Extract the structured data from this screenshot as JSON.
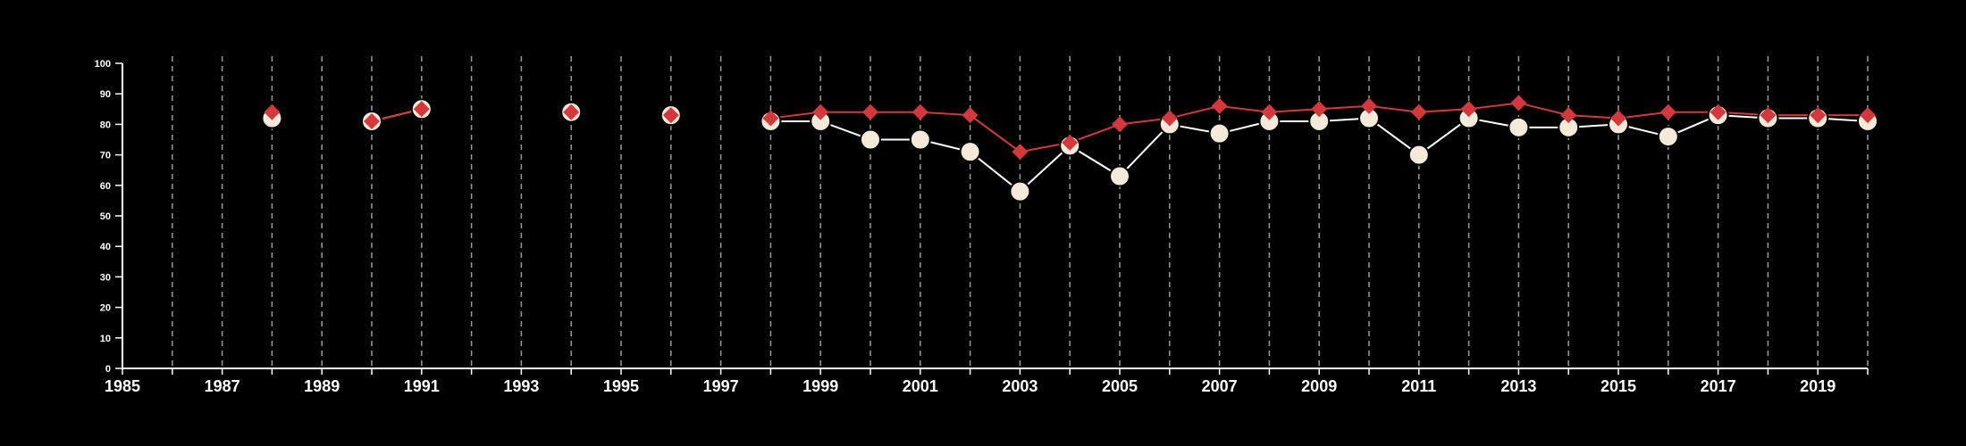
{
  "chart_data": {
    "type": "line",
    "title": "",
    "xlabel": "",
    "ylabel": "",
    "xlim": [
      1985,
      2020
    ],
    "ylim": [
      0,
      100
    ],
    "x_ticks": [
      1985,
      1987,
      1989,
      1991,
      1993,
      1995,
      1997,
      1999,
      2001,
      2003,
      2005,
      2007,
      2009,
      2011,
      2013,
      2015,
      2017,
      2019
    ],
    "y_ticks": [
      0,
      10,
      20,
      30,
      40,
      50,
      60,
      70,
      80,
      90,
      100
    ],
    "grid": "vertical dashed at every year",
    "legend": "none",
    "series": [
      {
        "marker": "circle",
        "color": "#f5ead9",
        "stroke": "#000000",
        "points": [
          [
            1988,
            82
          ],
          [
            1990,
            81
          ],
          [
            1991,
            85
          ],
          [
            1994,
            84
          ],
          [
            1996,
            83
          ],
          [
            1998,
            81
          ],
          [
            1999,
            81
          ],
          [
            2000,
            75
          ],
          [
            2001,
            75
          ],
          [
            2002,
            71
          ],
          [
            2003,
            58
          ],
          [
            2004,
            73
          ],
          [
            2005,
            63
          ],
          [
            2006,
            80
          ],
          [
            2007,
            77
          ],
          [
            2008,
            81
          ],
          [
            2009,
            81
          ],
          [
            2010,
            82
          ],
          [
            2011,
            70
          ],
          [
            2012,
            82
          ],
          [
            2013,
            79
          ],
          [
            2014,
            79
          ],
          [
            2015,
            80
          ],
          [
            2016,
            76
          ],
          [
            2017,
            83
          ],
          [
            2018,
            82
          ],
          [
            2019,
            82
          ],
          [
            2020,
            81
          ]
        ]
      },
      {
        "marker": "diamond",
        "color": "#d3393c",
        "points": [
          [
            1988,
            84
          ],
          [
            1990,
            81
          ],
          [
            1991,
            85
          ],
          [
            1994,
            84
          ],
          [
            1996,
            83
          ],
          [
            1998,
            82
          ],
          [
            1999,
            84
          ],
          [
            2000,
            84
          ],
          [
            2001,
            84
          ],
          [
            2002,
            83
          ],
          [
            2003,
            71
          ],
          [
            2004,
            74
          ],
          [
            2005,
            80
          ],
          [
            2006,
            82
          ],
          [
            2007,
            86
          ],
          [
            2008,
            84
          ],
          [
            2009,
            85
          ],
          [
            2010,
            86
          ],
          [
            2011,
            84
          ],
          [
            2012,
            85
          ],
          [
            2013,
            87
          ],
          [
            2014,
            83
          ],
          [
            2015,
            82
          ],
          [
            2016,
            84
          ],
          [
            2017,
            84
          ],
          [
            2018,
            83
          ],
          [
            2019,
            83
          ],
          [
            2020,
            83
          ]
        ]
      }
    ]
  }
}
